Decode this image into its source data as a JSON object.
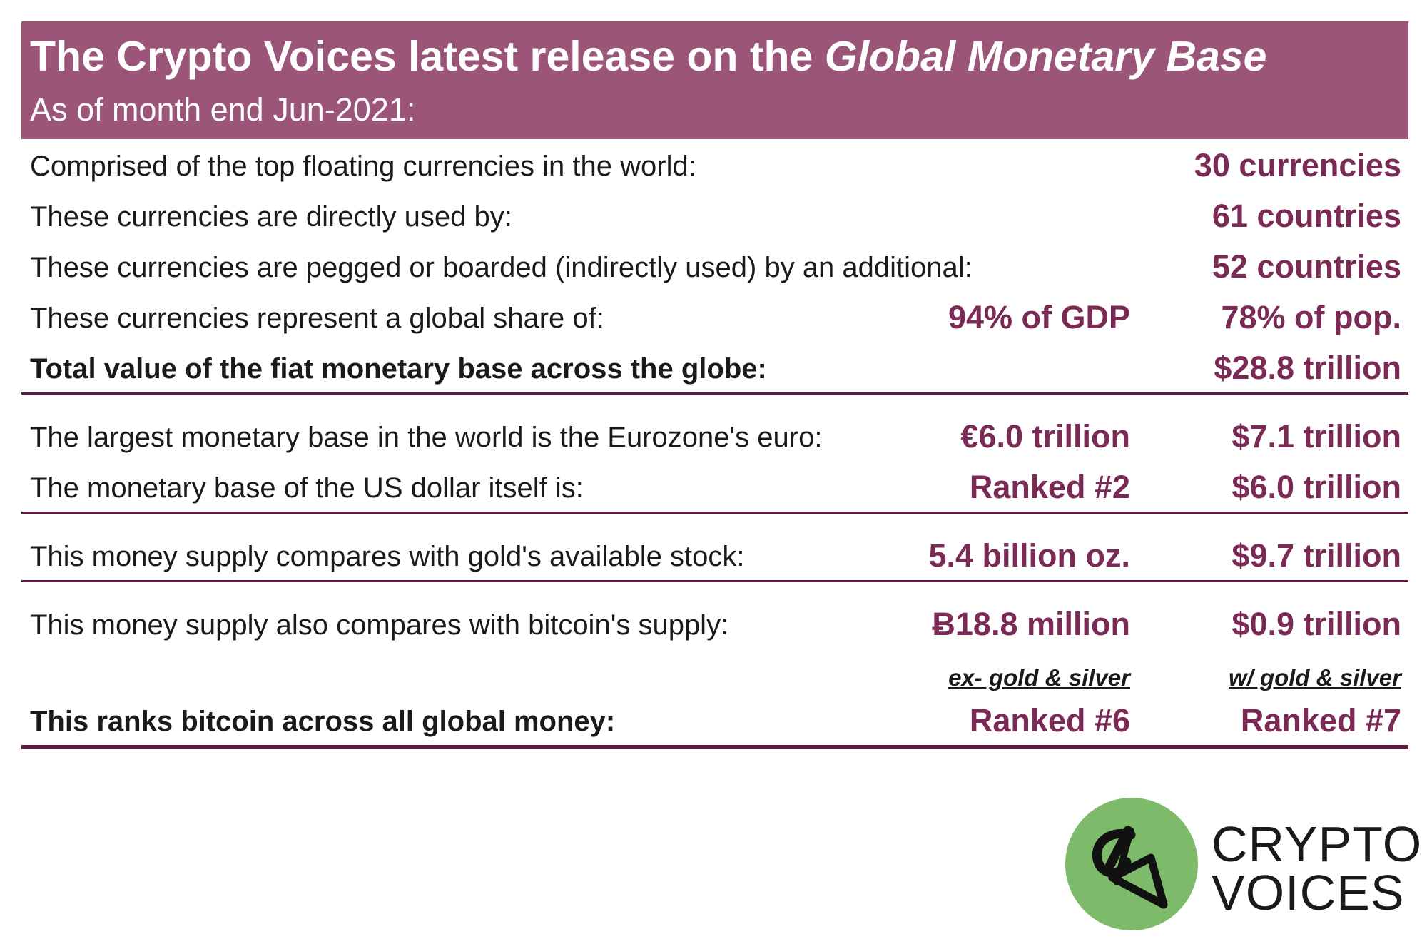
{
  "header": {
    "title_plain": "The Crypto Voices latest release on the ",
    "title_italic": "Global Monetary Base",
    "subtitle": "As of month end Jun-2021:"
  },
  "section1": {
    "rows": [
      {
        "label": "Comprised of the top floating currencies in the world:",
        "c1": "",
        "c2": "30 currencies"
      },
      {
        "label": "These currencies are directly used by:",
        "c1": "",
        "c2": "61 countries"
      },
      {
        "label": "These currencies are pegged or boarded (indirectly used) by an additional:",
        "c1": "",
        "c2": "52 countries"
      },
      {
        "label": "These currencies represent a global share of:",
        "c1": "94% of GDP",
        "c2": "78% of pop."
      },
      {
        "label": "Total value of the fiat monetary base across the globe:",
        "c1": "",
        "c2": "$28.8 trillion"
      }
    ]
  },
  "section2": {
    "rows": [
      {
        "label": "The largest monetary base in the world is the Eurozone's euro:",
        "c1": "€6.0 trillion",
        "c2": "$7.1 trillion"
      },
      {
        "label": "The monetary base of the US dollar itself is:",
        "c1": "Ranked #2",
        "c2": "$6.0 trillion"
      }
    ]
  },
  "section3": {
    "rows": [
      {
        "label": "This money supply compares with gold's available stock:",
        "c1": "5.4 billion oz.",
        "c2": "$9.7 trillion"
      }
    ]
  },
  "section4": {
    "rows": [
      {
        "label": "This money supply also compares with bitcoin's supply:",
        "c1": "Ƀ18.8 million",
        "c2": "$0.9 trillion"
      }
    ],
    "subheads": {
      "c1": "ex- gold & silver",
      "c2": "w/ gold & silver"
    },
    "rank_row": {
      "label": "This ranks bitcoin across all global money:",
      "c1": "Ranked #6",
      "c2": "Ranked #7"
    }
  },
  "logo": {
    "line1": "CRYPTO",
    "line2": "VOICES",
    "icon": "microphone-icon",
    "circle_color": "#7dbb6b"
  },
  "colors": {
    "header_bg": "#9a5578",
    "value_text": "#7a2a55",
    "divider": "#5c1d42"
  }
}
